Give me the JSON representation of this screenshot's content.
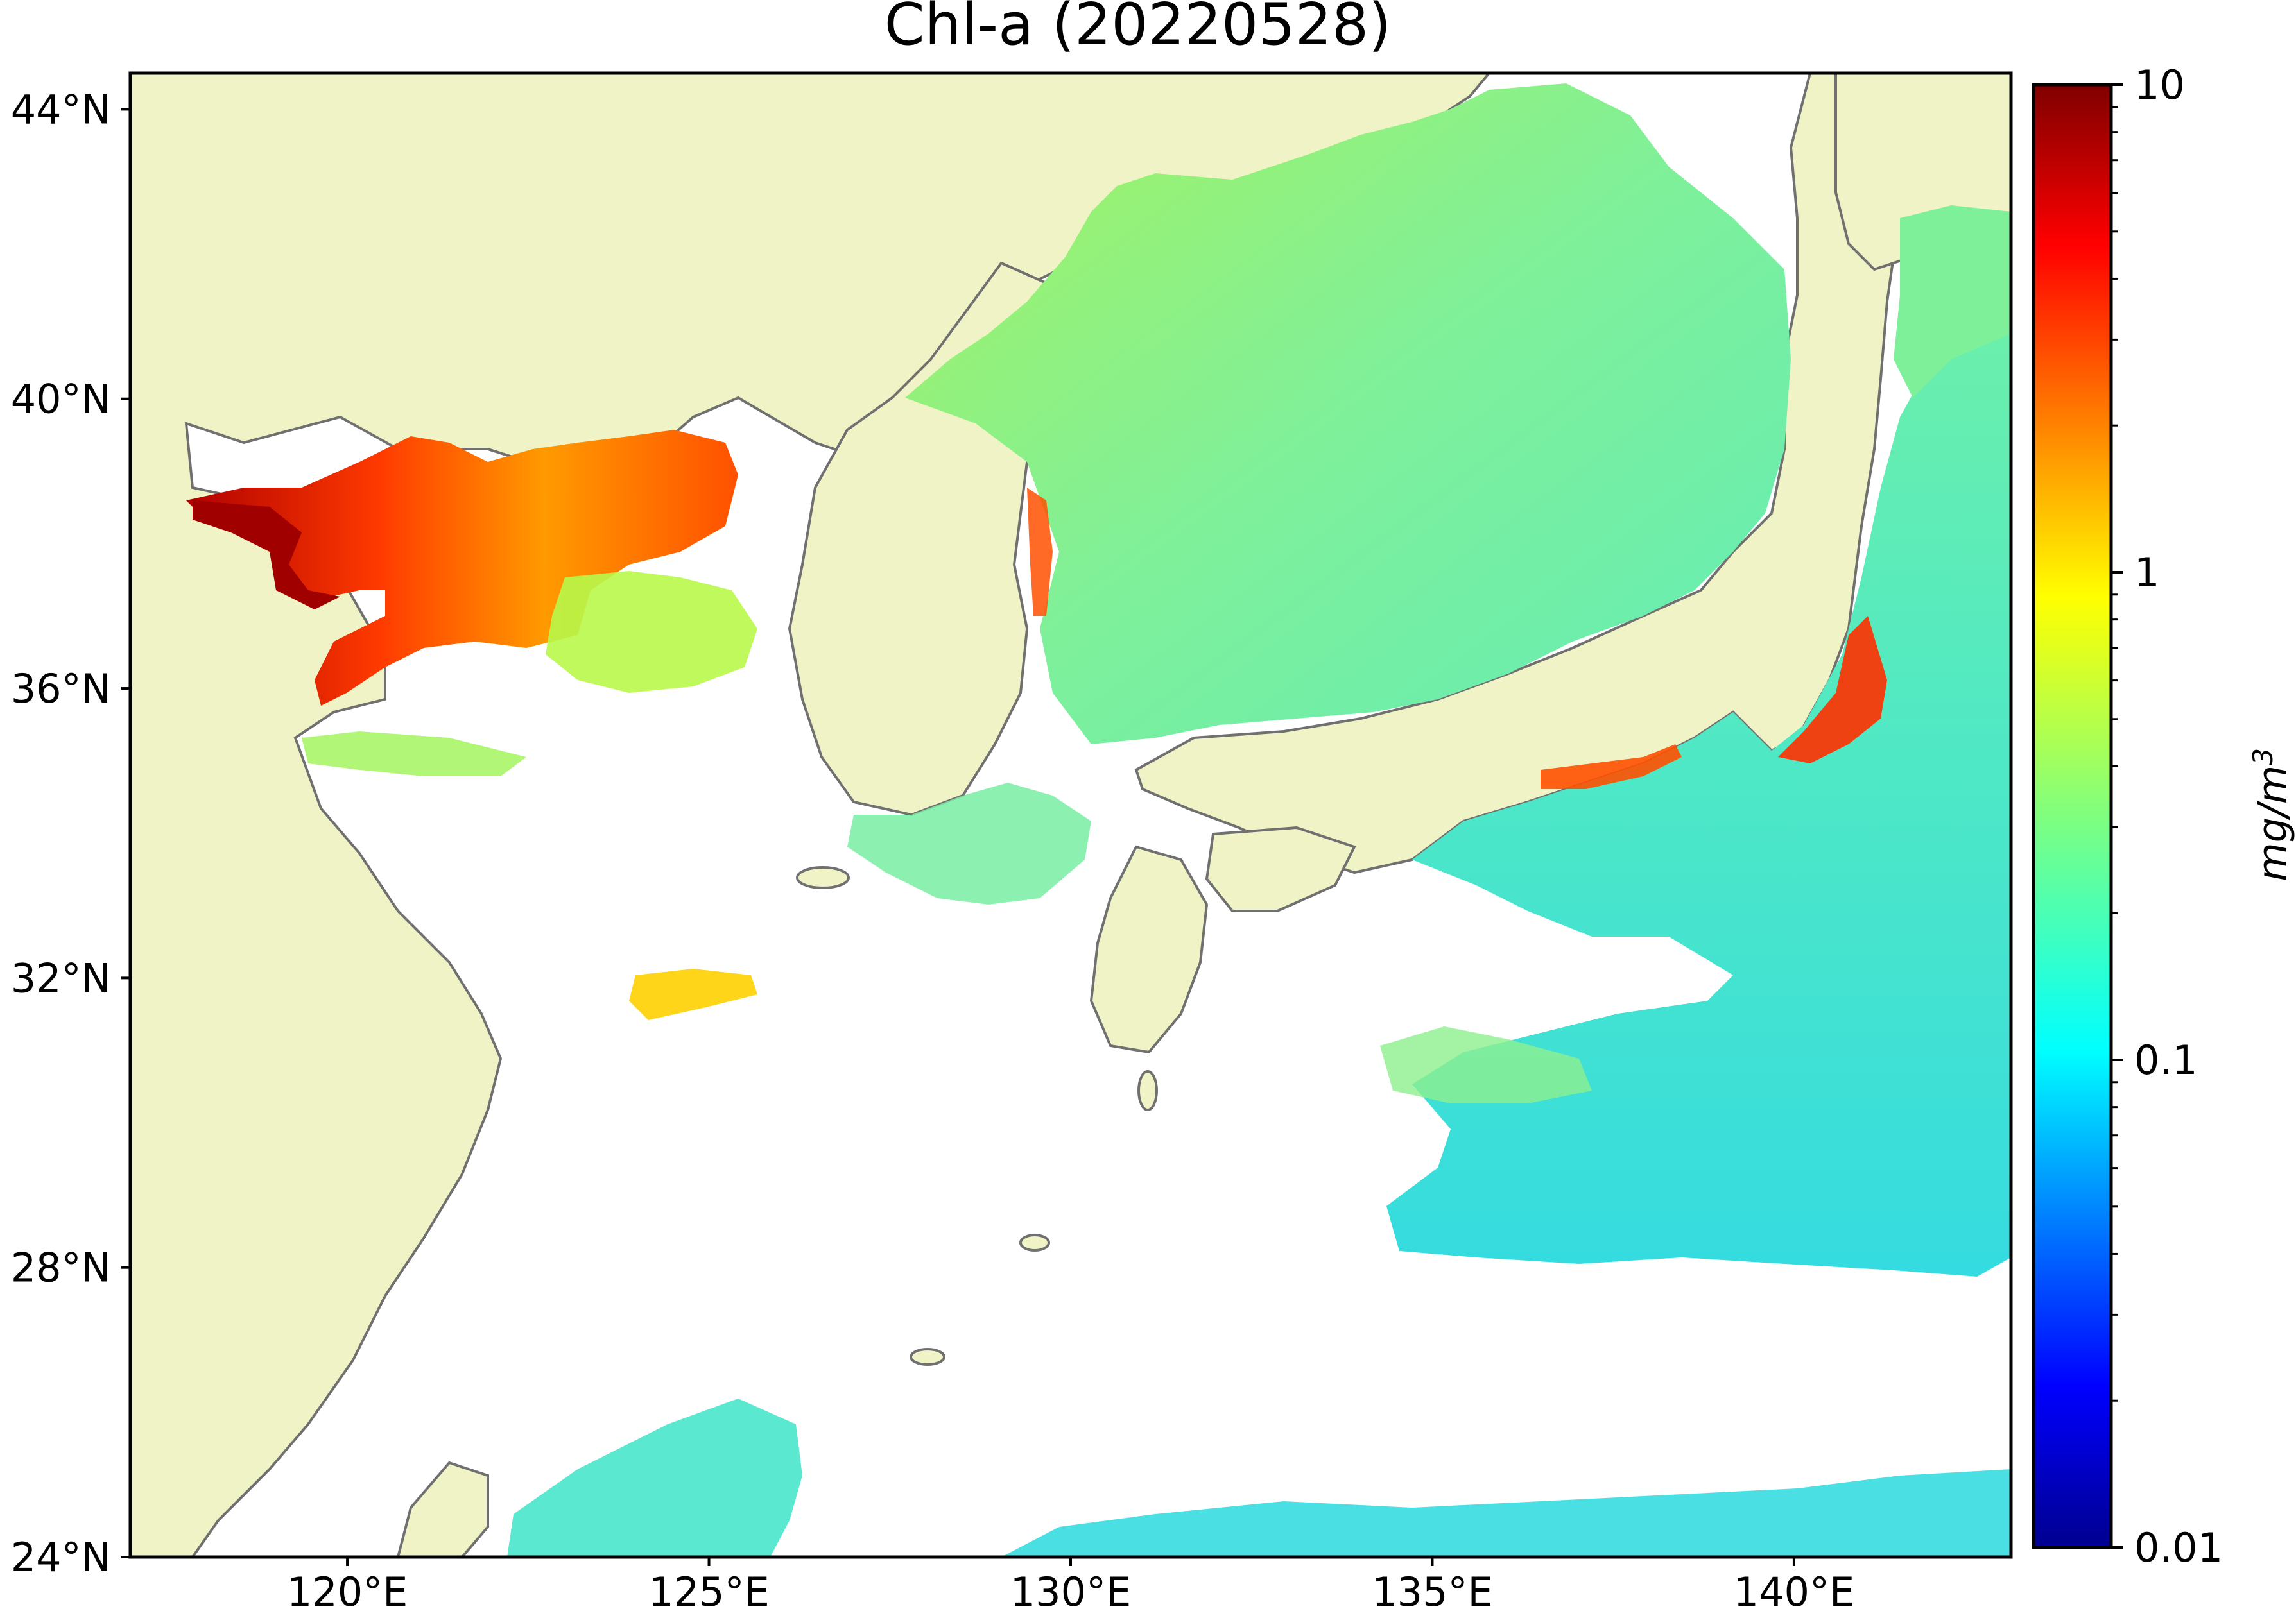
{
  "title": "Chl-a (20220528)",
  "map": {
    "lat_range": [
      24,
      44.5
    ],
    "lon_range": [
      117,
      143
    ],
    "lat_ticks": [
      {
        "value": 44,
        "label": "44°N"
      },
      {
        "value": 40,
        "label": "40°N"
      },
      {
        "value": 36,
        "label": "36°N"
      },
      {
        "value": 32,
        "label": "32°N"
      },
      {
        "value": 28,
        "label": "28°N"
      },
      {
        "value": 24,
        "label": "24°N"
      }
    ],
    "lon_ticks": [
      {
        "value": 120,
        "label": "120°E"
      },
      {
        "value": 125,
        "label": "125°E"
      },
      {
        "value": 130,
        "label": "130°E"
      },
      {
        "value": 135,
        "label": "135°E"
      },
      {
        "value": 140,
        "label": "140°E"
      }
    ],
    "colors": {
      "land": "#f0f3c6",
      "coastline": "#707070",
      "no_data": "#ffffff"
    }
  },
  "colorbar": {
    "unit": "mg/m3",
    "unit_base": "mg/m",
    "unit_exp": "3",
    "scale": "log",
    "range": [
      0.01,
      10
    ],
    "colormap": "jet",
    "ticks": [
      {
        "value": 10,
        "label": "10"
      },
      {
        "value": 1,
        "label": "1"
      },
      {
        "value": 0.1,
        "label": "0.1"
      },
      {
        "value": 0.01,
        "label": "0.01"
      }
    ]
  }
}
